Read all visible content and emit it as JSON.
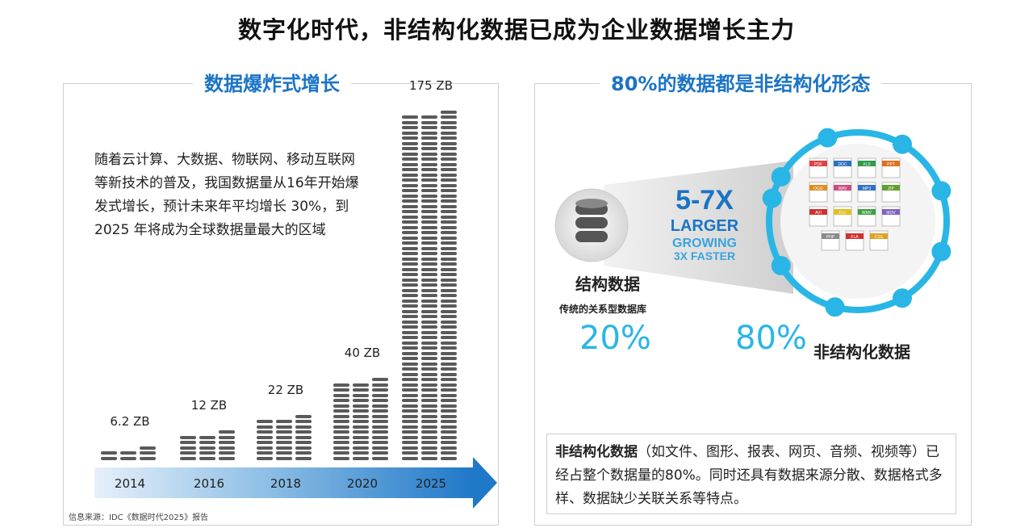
{
  "title": "数字化时代，非结构化数据已成为企业数据增长主力",
  "left": {
    "heading": "数据爆炸式增长",
    "description": "随着云计算、大数据、物联网、移动互联网等新技术的普及，我国数据量从16年开始爆发式增长，预计未来年平均增长 30%，到 2025 年将成为全球数据量最大的区域",
    "source": "信息来源：IDC《数据时代2025》报告"
  },
  "right": {
    "heading": "80%的数据都是非结构化形态",
    "multiplier": "5-7X",
    "larger": "LARGER",
    "growing": "GROWING",
    "faster": "3X FASTER",
    "structured_label": "结构数据",
    "structured_sub": "传统的关系型数据库",
    "structured_pct": "20%",
    "unstructured_pct": "80%",
    "unstructured_label": "非结构化数据",
    "file_types": [
      "PDF",
      "DOC",
      "XLS",
      "PPT",
      "OGG",
      "WAV",
      "MP3",
      "ZIP",
      "AVI",
      "FLV",
      "WMV",
      "MOV",
      "PHP",
      "FLA",
      "CSS"
    ],
    "note_bold": "非结构化数据",
    "note_rest": "（如文件、图形、报表、网页、音频、视频等）已经占整个数据量的80%。同时还具有数据来源分散、数据格式多样、数据缺少关联关系等特点。"
  },
  "chart_data": {
    "type": "bar",
    "categories": [
      "2014",
      "2016",
      "2018",
      "2020",
      "2025"
    ],
    "values": [
      6.2,
      12,
      22,
      40,
      175
    ],
    "value_labels": [
      "6.2 ZB",
      "12 ZB",
      "22 ZB",
      "40 ZB",
      "175 ZB"
    ],
    "ylabel": "ZB"
  },
  "colors": {
    "accent": "#1b74c5",
    "cyan": "#29b6e6",
    "stack": "#5a5a5a"
  }
}
